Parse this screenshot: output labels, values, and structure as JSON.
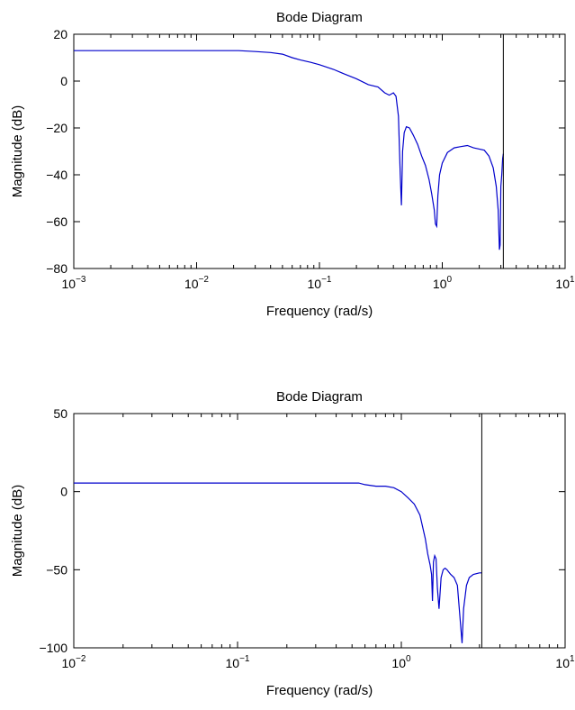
{
  "chart_data": [
    {
      "type": "line",
      "title": "Bode Diagram",
      "xlabel": "Frequency  (rad/s)",
      "ylabel": "Magnitude (dB)",
      "xscale": "log",
      "xlim": [
        0.001,
        10
      ],
      "ylim": [
        -80,
        20
      ],
      "xticks": [
        {
          "base": "10",
          "exp": "−3",
          "value": 0.001
        },
        {
          "base": "10",
          "exp": "−2",
          "value": 0.01
        },
        {
          "base": "10",
          "exp": "−1",
          "value": 0.1
        },
        {
          "base": "10",
          "exp": "0",
          "value": 1
        },
        {
          "base": "10",
          "exp": "1",
          "value": 10
        }
      ],
      "yticks": [
        {
          "label": "20",
          "value": 20
        },
        {
          "label": "0",
          "value": 0
        },
        {
          "label": "−20",
          "value": -20
        },
        {
          "label": "−40",
          "value": -40
        },
        {
          "label": "−60",
          "value": -60
        },
        {
          "label": "−80",
          "value": -80
        }
      ],
      "grid": false,
      "series": [
        {
          "color": "#0000cc",
          "x": [
            0.001,
            0.003,
            0.01,
            0.022,
            0.03,
            0.04,
            0.05,
            0.06,
            0.07,
            0.085,
            0.1,
            0.13,
            0.16,
            0.2,
            0.25,
            0.3,
            0.34,
            0.37,
            0.4,
            0.42,
            0.44,
            0.455,
            0.465,
            0.475,
            0.49,
            0.51,
            0.54,
            0.58,
            0.63,
            0.68,
            0.73,
            0.78,
            0.82,
            0.86,
            0.88,
            0.9,
            0.92,
            0.95,
            1.0,
            1.1,
            1.25,
            1.4,
            1.6,
            1.8,
            2.0,
            2.2,
            2.4,
            2.6,
            2.75,
            2.85,
            2.92,
            2.96,
            3.0,
            3.05,
            3.1,
            3.142
          ],
          "y": [
            13,
            13,
            13,
            13,
            12.6,
            12.2,
            11.5,
            10,
            9,
            8,
            7,
            5,
            3,
            1,
            -1.5,
            -2.5,
            -5,
            -6,
            -5,
            -6.5,
            -15,
            -40,
            -53,
            -30,
            -22,
            -19.5,
            -20,
            -23,
            -27,
            -32,
            -36,
            -42,
            -48,
            -55,
            -61,
            -62,
            -49,
            -40,
            -35,
            -30.5,
            -28.5,
            -28,
            -27.5,
            -28.5,
            -29,
            -29.5,
            -32,
            -37,
            -45,
            -55,
            -72,
            -70,
            -45,
            -40,
            -33,
            -31
          ]
        }
      ],
      "vline_x": 3.1416
    },
    {
      "type": "line",
      "title": "Bode Diagram",
      "xlabel": "Frequency  (rad/s)",
      "ylabel": "Magnitude (dB)",
      "xscale": "log",
      "xlim": [
        0.01,
        10
      ],
      "ylim": [
        -100,
        50
      ],
      "xticks": [
        {
          "base": "10",
          "exp": "−2",
          "value": 0.01
        },
        {
          "base": "10",
          "exp": "−1",
          "value": 0.1
        },
        {
          "base": "10",
          "exp": "0",
          "value": 1
        },
        {
          "base": "10",
          "exp": "1",
          "value": 10
        }
      ],
      "yticks": [
        {
          "label": "50",
          "value": 50
        },
        {
          "label": "0",
          "value": 0
        },
        {
          "label": "−50",
          "value": -50
        },
        {
          "label": "−100",
          "value": -100
        }
      ],
      "grid": false,
      "series": [
        {
          "color": "#0000cc",
          "x": [
            0.01,
            0.05,
            0.1,
            0.3,
            0.55,
            0.6,
            0.7,
            0.8,
            0.9,
            1.0,
            1.1,
            1.2,
            1.3,
            1.4,
            1.45,
            1.5,
            1.53,
            1.55,
            1.57,
            1.6,
            1.63,
            1.66,
            1.7,
            1.75,
            1.8,
            1.85,
            1.9,
            2.0,
            2.1,
            2.2,
            2.28,
            2.35,
            2.4,
            2.5,
            2.6,
            2.75,
            3.0,
            3.1
          ],
          "y": [
            5.5,
            5.5,
            5.5,
            5.5,
            5.5,
            4.5,
            3.5,
            3.5,
            2.5,
            0,
            -4,
            -8,
            -15,
            -30,
            -40,
            -47,
            -53,
            -70,
            -45,
            -41,
            -43,
            -62,
            -75,
            -55,
            -50,
            -49,
            -50,
            -53,
            -55,
            -60,
            -80,
            -97,
            -75,
            -60,
            -55,
            -53,
            -52,
            -52
          ]
        }
      ],
      "vline_x": 3.1
    }
  ]
}
